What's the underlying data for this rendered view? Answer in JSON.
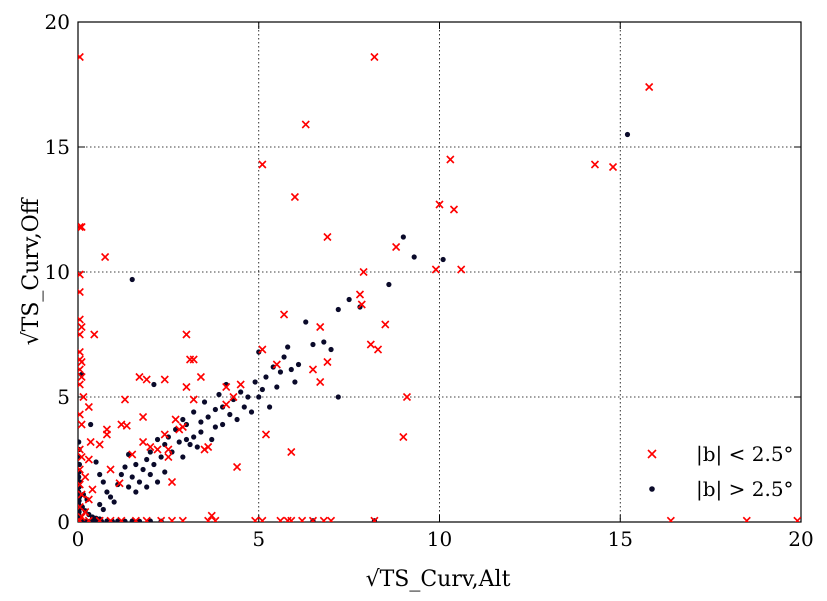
{
  "chart_data": {
    "type": "scatter",
    "title": "",
    "xlabel": "√TS_Curv,Alt",
    "ylabel": "√TS_Curv,Off",
    "xlim": [
      0,
      20
    ],
    "ylim": [
      0,
      20
    ],
    "xticks": [
      "0",
      "5",
      "10",
      "15",
      "20"
    ],
    "yticks": [
      "0",
      "5",
      "10",
      "15",
      "20"
    ],
    "grid": true,
    "legend_position": "lower-right",
    "series": [
      {
        "name": "|b| < 2.5°",
        "marker": "x",
        "color": "#ff0000",
        "points": [
          [
            0.05,
            18.6
          ],
          [
            0.05,
            11.8
          ],
          [
            0.1,
            11.8
          ],
          [
            0.05,
            9.9
          ],
          [
            0.05,
            9.2
          ],
          [
            0.05,
            8.1
          ],
          [
            0.1,
            7.8
          ],
          [
            0.05,
            7.5
          ],
          [
            0.45,
            7.5
          ],
          [
            0.05,
            6.8
          ],
          [
            0.05,
            6.5
          ],
          [
            0.1,
            6.4
          ],
          [
            0.05,
            6.1
          ],
          [
            0.1,
            5.8
          ],
          [
            0.05,
            5.5
          ],
          [
            0.15,
            5.0
          ],
          [
            0.3,
            4.6
          ],
          [
            0.05,
            4.3
          ],
          [
            0.1,
            3.9
          ],
          [
            0.35,
            3.2
          ],
          [
            0.05,
            2.9
          ],
          [
            0.1,
            2.6
          ],
          [
            0.3,
            2.5
          ],
          [
            0.05,
            2.1
          ],
          [
            0.2,
            1.8
          ],
          [
            0.05,
            1.5
          ],
          [
            0.4,
            1.3
          ],
          [
            0.1,
            1.1
          ],
          [
            0.3,
            0.9
          ],
          [
            0.05,
            0.6
          ],
          [
            0.2,
            0.4
          ],
          [
            0.1,
            0.2
          ],
          [
            0.05,
            0.05
          ],
          [
            0.3,
            0.05
          ],
          [
            0.6,
            0.05
          ],
          [
            0.9,
            0.05
          ],
          [
            1.2,
            0.05
          ],
          [
            1.6,
            0.05
          ],
          [
            1.9,
            0.05
          ],
          [
            2.3,
            0.05
          ],
          [
            2.6,
            0.05
          ],
          [
            2.9,
            0.05
          ],
          [
            3.6,
            0.05
          ],
          [
            3.8,
            0.05
          ],
          [
            4.9,
            0.05
          ],
          [
            5.1,
            0.05
          ],
          [
            5.6,
            0.05
          ],
          [
            5.8,
            0.05
          ],
          [
            5.9,
            0.05
          ],
          [
            6.2,
            0.05
          ],
          [
            6.5,
            0.05
          ],
          [
            6.8,
            0.05
          ],
          [
            7.0,
            0.05
          ],
          [
            8.2,
            0.05
          ],
          [
            16.4,
            0.05
          ],
          [
            18.5,
            0.05
          ],
          [
            19.9,
            0.05
          ],
          [
            0.75,
            10.6
          ],
          [
            0.8,
            3.7
          ],
          [
            0.8,
            3.5
          ],
          [
            0.6,
            3.1
          ],
          [
            0.9,
            2.1
          ],
          [
            1.15,
            1.55
          ],
          [
            1.2,
            3.9
          ],
          [
            1.3,
            4.9
          ],
          [
            1.35,
            3.85
          ],
          [
            1.5,
            2.7
          ],
          [
            1.7,
            5.8
          ],
          [
            1.8,
            4.2
          ],
          [
            1.8,
            3.2
          ],
          [
            1.9,
            5.7
          ],
          [
            2.0,
            3.0
          ],
          [
            2.2,
            2.9
          ],
          [
            2.4,
            5.7
          ],
          [
            2.4,
            3.5
          ],
          [
            2.5,
            2.9
          ],
          [
            2.5,
            2.6
          ],
          [
            2.6,
            1.6
          ],
          [
            2.7,
            4.1
          ],
          [
            2.8,
            3.7
          ],
          [
            2.9,
            3.8
          ],
          [
            3.0,
            7.5
          ],
          [
            3.0,
            5.4
          ],
          [
            3.1,
            6.5
          ],
          [
            3.2,
            6.5
          ],
          [
            3.2,
            4.9
          ],
          [
            3.4,
            5.8
          ],
          [
            3.5,
            2.9
          ],
          [
            3.6,
            3.0
          ],
          [
            3.7,
            0.25
          ],
          [
            4.1,
            5.4
          ],
          [
            4.1,
            4.7
          ],
          [
            4.3,
            5.0
          ],
          [
            4.4,
            2.2
          ],
          [
            4.5,
            5.5
          ],
          [
            5.1,
            14.3
          ],
          [
            5.1,
            6.9
          ],
          [
            5.2,
            3.5
          ],
          [
            5.5,
            6.3
          ],
          [
            5.7,
            8.3
          ],
          [
            5.9,
            2.8
          ],
          [
            6.0,
            13.0
          ],
          [
            6.3,
            15.9
          ],
          [
            6.5,
            6.1
          ],
          [
            6.7,
            7.8
          ],
          [
            6.7,
            5.6
          ],
          [
            6.9,
            6.4
          ],
          [
            6.9,
            11.4
          ],
          [
            7.8,
            9.1
          ],
          [
            7.85,
            8.7
          ],
          [
            7.9,
            10.0
          ],
          [
            8.1,
            7.1
          ],
          [
            8.2,
            18.6
          ],
          [
            8.3,
            6.9
          ],
          [
            8.5,
            7.9
          ],
          [
            8.8,
            11.0
          ],
          [
            9.0,
            3.4
          ],
          [
            9.1,
            5.0
          ],
          [
            9.9,
            10.1
          ],
          [
            10.0,
            12.7
          ],
          [
            10.3,
            14.5
          ],
          [
            10.4,
            12.5
          ],
          [
            10.6,
            10.1
          ],
          [
            14.3,
            14.3
          ],
          [
            14.8,
            14.2
          ],
          [
            15.8,
            17.4
          ]
        ]
      },
      {
        "name": "|b| > 2.5°",
        "marker": "dot",
        "color": "#0a0a2a",
        "points": [
          [
            0.02,
            3.2
          ],
          [
            0.03,
            2.9
          ],
          [
            0.02,
            2.6
          ],
          [
            0.04,
            2.3
          ],
          [
            0.03,
            2.0
          ],
          [
            0.02,
            1.8
          ],
          [
            0.05,
            1.6
          ],
          [
            0.03,
            1.4
          ],
          [
            0.02,
            1.2
          ],
          [
            0.04,
            1.0
          ],
          [
            0.03,
            0.85
          ],
          [
            0.02,
            0.7
          ],
          [
            0.05,
            0.55
          ],
          [
            0.03,
            0.4
          ],
          [
            0.02,
            0.3
          ],
          [
            0.04,
            0.2
          ],
          [
            0.03,
            0.1
          ],
          [
            0.02,
            0.04
          ],
          [
            0.15,
            0.04
          ],
          [
            0.25,
            0.03
          ],
          [
            0.35,
            0.04
          ],
          [
            0.45,
            0.03
          ],
          [
            0.55,
            0.05
          ],
          [
            0.65,
            0.03
          ],
          [
            0.8,
            0.04
          ],
          [
            0.95,
            0.03
          ],
          [
            1.1,
            0.04
          ],
          [
            1.3,
            0.03
          ],
          [
            1.5,
            0.04
          ],
          [
            1.7,
            0.03
          ],
          [
            2.0,
            0.04
          ],
          [
            2.3,
            0.03
          ],
          [
            0.12,
            0.6
          ],
          [
            0.2,
            0.45
          ],
          [
            0.3,
            0.3
          ],
          [
            0.4,
            0.2
          ],
          [
            0.5,
            0.15
          ],
          [
            0.6,
            0.12
          ],
          [
            0.15,
            1.1
          ],
          [
            0.25,
            0.9
          ],
          [
            0.1,
            5.9
          ],
          [
            0.35,
            3.9
          ],
          [
            0.5,
            2.4
          ],
          [
            0.6,
            1.9
          ],
          [
            0.7,
            1.6
          ],
          [
            0.8,
            1.2
          ],
          [
            0.9,
            1.0
          ],
          [
            1.0,
            0.8
          ],
          [
            0.6,
            0.7
          ],
          [
            0.7,
            0.5
          ],
          [
            1.1,
            1.5
          ],
          [
            1.2,
            1.9
          ],
          [
            1.3,
            2.2
          ],
          [
            1.4,
            1.4
          ],
          [
            1.4,
            2.7
          ],
          [
            1.5,
            9.7
          ],
          [
            1.5,
            1.8
          ],
          [
            1.6,
            2.3
          ],
          [
            1.6,
            1.2
          ],
          [
            1.7,
            1.6
          ],
          [
            1.8,
            2.1
          ],
          [
            1.9,
            2.5
          ],
          [
            1.9,
            1.4
          ],
          [
            2.0,
            2.8
          ],
          [
            2.0,
            1.9
          ],
          [
            2.1,
            5.5
          ],
          [
            2.1,
            2.3
          ],
          [
            2.2,
            3.3
          ],
          [
            2.2,
            1.6
          ],
          [
            2.3,
            2.6
          ],
          [
            2.4,
            3.1
          ],
          [
            2.4,
            2.0
          ],
          [
            2.5,
            3.4
          ],
          [
            2.6,
            2.8
          ],
          [
            2.7,
            3.7
          ],
          [
            2.8,
            3.2
          ],
          [
            2.9,
            4.1
          ],
          [
            2.9,
            2.6
          ],
          [
            3.0,
            3.3
          ],
          [
            3.0,
            3.9
          ],
          [
            3.1,
            3.1
          ],
          [
            3.2,
            4.4
          ],
          [
            3.2,
            3.4
          ],
          [
            3.3,
            3.0
          ],
          [
            3.4,
            4.0
          ],
          [
            3.4,
            3.6
          ],
          [
            3.5,
            4.8
          ],
          [
            3.6,
            4.2
          ],
          [
            3.7,
            3.3
          ],
          [
            3.8,
            4.5
          ],
          [
            3.8,
            3.8
          ],
          [
            3.9,
            5.1
          ],
          [
            4.0,
            4.6
          ],
          [
            4.0,
            3.9
          ],
          [
            4.1,
            5.5
          ],
          [
            4.2,
            4.3
          ],
          [
            4.3,
            4.9
          ],
          [
            4.4,
            4.1
          ],
          [
            4.5,
            5.2
          ],
          [
            4.6,
            4.6
          ],
          [
            4.7,
            5.0
          ],
          [
            4.8,
            4.4
          ],
          [
            4.9,
            5.6
          ],
          [
            5.0,
            6.8
          ],
          [
            5.0,
            5.0
          ],
          [
            5.1,
            5.3
          ],
          [
            5.2,
            5.8
          ],
          [
            5.3,
            4.6
          ],
          [
            5.4,
            6.2
          ],
          [
            5.5,
            5.4
          ],
          [
            5.6,
            6.0
          ],
          [
            5.7,
            6.6
          ],
          [
            5.8,
            7.0
          ],
          [
            5.9,
            6.1
          ],
          [
            6.0,
            5.6
          ],
          [
            6.1,
            6.3
          ],
          [
            6.3,
            8.0
          ],
          [
            6.5,
            7.1
          ],
          [
            6.8,
            7.2
          ],
          [
            7.0,
            6.9
          ],
          [
            7.2,
            8.5
          ],
          [
            7.2,
            5.0
          ],
          [
            7.5,
            8.9
          ],
          [
            7.8,
            8.6
          ],
          [
            8.6,
            9.5
          ],
          [
            9.0,
            11.4
          ],
          [
            9.3,
            10.6
          ],
          [
            10.1,
            10.5
          ],
          [
            15.2,
            15.5
          ],
          [
            6.5,
            0.05
          ],
          [
            8.2,
            0.05
          ]
        ]
      }
    ]
  }
}
